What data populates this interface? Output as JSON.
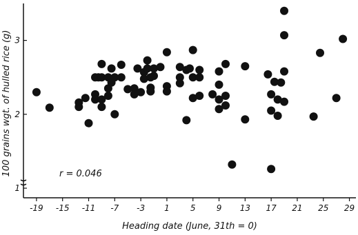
{
  "chart_data": {
    "type": "scatter",
    "xlabel": "Heading date (June, 31th = 0)",
    "ylabel": "100 grains wgt. of hulled rice (g)",
    "annotation": "r = 0.046",
    "xlim": [
      -21,
      30
    ],
    "ylim": [
      0.87,
      3.5
    ],
    "xticks": [
      -19,
      -15,
      -11,
      -7,
      -3,
      1,
      5,
      9,
      13,
      17,
      21,
      25,
      29
    ],
    "yticks": [
      1,
      2,
      3
    ],
    "grid": false,
    "points": [
      {
        "x": -19,
        "y": 2.3
      },
      {
        "x": -17,
        "y": 2.09
      },
      {
        "x": -12.5,
        "y": 2.16
      },
      {
        "x": -12.5,
        "y": 2.1
      },
      {
        "x": -11.5,
        "y": 2.22
      },
      {
        "x": -11,
        "y": 1.88
      },
      {
        "x": -10,
        "y": 2.5
      },
      {
        "x": -10,
        "y": 2.27
      },
      {
        "x": -10,
        "y": 2.2
      },
      {
        "x": -9.5,
        "y": 2.5
      },
      {
        "x": -9,
        "y": 2.68
      },
      {
        "x": -9,
        "y": 2.5
      },
      {
        "x": -9,
        "y": 2.2
      },
      {
        "x": -9,
        "y": 2.1
      },
      {
        "x": -8,
        "y": 2.5
      },
      {
        "x": -8,
        "y": 2.35
      },
      {
        "x": -8,
        "y": 2.25
      },
      {
        "x": -7.5,
        "y": 2.62
      },
      {
        "x": -7.5,
        "y": 2.43
      },
      {
        "x": -7,
        "y": 2.5
      },
      {
        "x": -7,
        "y": 2.0
      },
      {
        "x": -6,
        "y": 2.67
      },
      {
        "x": -6,
        "y": 2.5
      },
      {
        "x": -5,
        "y": 2.34
      },
      {
        "x": -4,
        "y": 2.35
      },
      {
        "x": -4,
        "y": 2.27
      },
      {
        "x": -3.5,
        "y": 2.62
      },
      {
        "x": -3,
        "y": 2.3
      },
      {
        "x": -2.5,
        "y": 2.57
      },
      {
        "x": -2.5,
        "y": 2.48
      },
      {
        "x": -2,
        "y": 2.73
      },
      {
        "x": -2,
        "y": 2.62
      },
      {
        "x": -1.5,
        "y": 2.5
      },
      {
        "x": -1.5,
        "y": 2.36
      },
      {
        "x": -1.5,
        "y": 2.31
      },
      {
        "x": -1,
        "y": 2.62
      },
      {
        "x": -1,
        "y": 2.52
      },
      {
        "x": 0,
        "y": 2.64
      },
      {
        "x": 1,
        "y": 2.84
      },
      {
        "x": 1,
        "y": 2.38
      },
      {
        "x": 1,
        "y": 2.31
      },
      {
        "x": 3,
        "y": 2.64
      },
      {
        "x": 3,
        "y": 2.5
      },
      {
        "x": 3,
        "y": 2.42
      },
      {
        "x": 4,
        "y": 2.6
      },
      {
        "x": 4,
        "y": 1.92
      },
      {
        "x": 4.5,
        "y": 2.62
      },
      {
        "x": 5,
        "y": 2.87
      },
      {
        "x": 5,
        "y": 2.5
      },
      {
        "x": 5,
        "y": 2.22
      },
      {
        "x": 6,
        "y": 2.6
      },
      {
        "x": 6,
        "y": 2.5
      },
      {
        "x": 6,
        "y": 2.25
      },
      {
        "x": 8,
        "y": 2.27
      },
      {
        "x": 9,
        "y": 2.58
      },
      {
        "x": 9,
        "y": 2.4
      },
      {
        "x": 9,
        "y": 2.2
      },
      {
        "x": 9,
        "y": 2.07
      },
      {
        "x": 10,
        "y": 2.68
      },
      {
        "x": 10,
        "y": 2.25
      },
      {
        "x": 10,
        "y": 2.12
      },
      {
        "x": 11,
        "y": 1.32
      },
      {
        "x": 13,
        "y": 2.65
      },
      {
        "x": 13,
        "y": 1.93
      },
      {
        "x": 16.5,
        "y": 2.54
      },
      {
        "x": 17,
        "y": 2.27
      },
      {
        "x": 17,
        "y": 2.05
      },
      {
        "x": 17,
        "y": 1.26
      },
      {
        "x": 17.5,
        "y": 2.44
      },
      {
        "x": 18,
        "y": 2.2
      },
      {
        "x": 18,
        "y": 1.98
      },
      {
        "x": 18.5,
        "y": 2.43
      },
      {
        "x": 19,
        "y": 3.4
      },
      {
        "x": 19,
        "y": 3.07
      },
      {
        "x": 19,
        "y": 2.58
      },
      {
        "x": 19,
        "y": 2.17
      },
      {
        "x": 23.5,
        "y": 1.97
      },
      {
        "x": 24.5,
        "y": 2.83
      },
      {
        "x": 27,
        "y": 2.22
      },
      {
        "x": 28,
        "y": 3.02
      }
    ]
  }
}
